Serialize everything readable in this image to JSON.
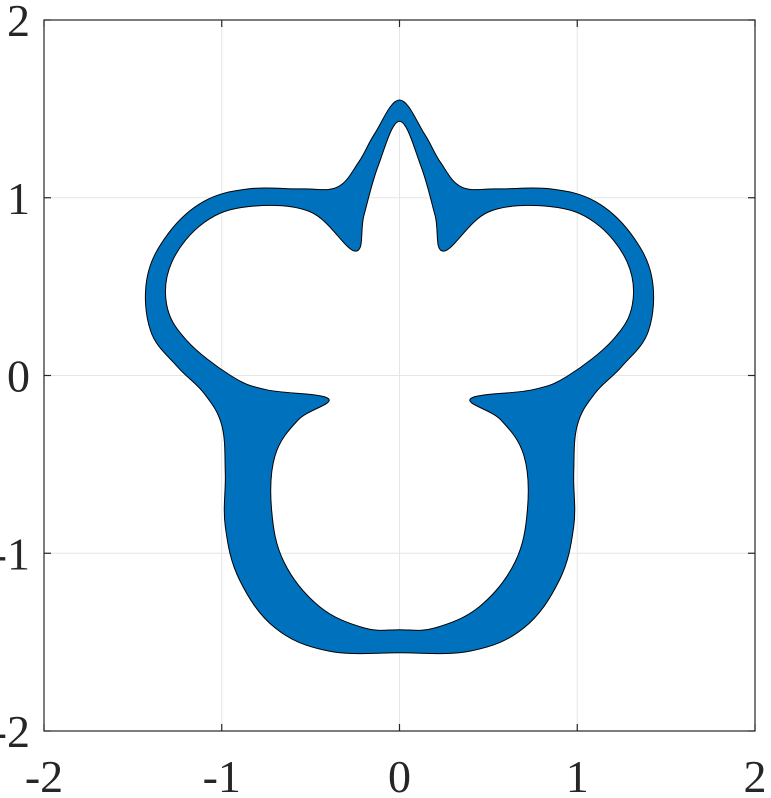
{
  "chart_data": {
    "type": "area",
    "title": "",
    "xlabel": "",
    "ylabel": "",
    "xlim": [
      -2,
      2
    ],
    "ylim": [
      -2,
      2
    ],
    "xticks": [
      "-2",
      "-1",
      "0",
      "1",
      "2"
    ],
    "yticks": [
      "-2",
      "-1",
      "0",
      "1",
      "2"
    ],
    "grid": true,
    "fill_color": "#0072BD",
    "edge_color": "#000000",
    "series": [
      {
        "outer_boundary": [
          [
            0.0,
            1.55
          ],
          [
            0.14,
            1.36
          ],
          [
            0.23,
            1.2
          ],
          [
            0.35,
            1.06
          ],
          [
            0.55,
            1.05
          ],
          [
            0.85,
            1.05
          ],
          [
            1.1,
            0.98
          ],
          [
            1.3,
            0.8
          ],
          [
            1.42,
            0.55
          ],
          [
            1.4,
            0.25
          ],
          [
            1.25,
            0.05
          ],
          [
            1.1,
            -0.1
          ],
          [
            1.0,
            -0.28
          ],
          [
            0.98,
            -0.55
          ],
          [
            0.98,
            -0.85
          ],
          [
            0.9,
            -1.15
          ],
          [
            0.7,
            -1.42
          ],
          [
            0.4,
            -1.55
          ],
          [
            0.0,
            -1.56
          ],
          [
            -0.4,
            -1.55
          ],
          [
            -0.7,
            -1.42
          ],
          [
            -0.9,
            -1.15
          ],
          [
            -0.98,
            -0.85
          ],
          [
            -0.98,
            -0.55
          ],
          [
            -1.0,
            -0.28
          ],
          [
            -1.1,
            -0.1
          ],
          [
            -1.25,
            0.05
          ],
          [
            -1.4,
            0.25
          ],
          [
            -1.42,
            0.55
          ],
          [
            -1.3,
            0.8
          ],
          [
            -1.1,
            0.98
          ],
          [
            -0.85,
            1.05
          ],
          [
            -0.55,
            1.05
          ],
          [
            -0.35,
            1.06
          ],
          [
            -0.23,
            1.2
          ],
          [
            -0.14,
            1.36
          ]
        ],
        "inner_boundary": [
          [
            0.0,
            1.43
          ],
          [
            0.12,
            1.18
          ],
          [
            0.2,
            0.9
          ],
          [
            0.25,
            0.7
          ],
          [
            0.5,
            0.92
          ],
          [
            0.85,
            0.95
          ],
          [
            1.1,
            0.86
          ],
          [
            1.28,
            0.64
          ],
          [
            1.31,
            0.4
          ],
          [
            1.2,
            0.2
          ],
          [
            0.95,
            0.0
          ],
          [
            0.75,
            -0.08
          ],
          [
            0.4,
            -0.13
          ],
          [
            0.57,
            -0.25
          ],
          [
            0.7,
            -0.45
          ],
          [
            0.72,
            -0.75
          ],
          [
            0.65,
            -1.05
          ],
          [
            0.45,
            -1.3
          ],
          [
            0.2,
            -1.42
          ],
          [
            0.0,
            -1.43
          ],
          [
            -0.2,
            -1.42
          ],
          [
            -0.45,
            -1.3
          ],
          [
            -0.65,
            -1.05
          ],
          [
            -0.72,
            -0.75
          ],
          [
            -0.7,
            -0.45
          ],
          [
            -0.57,
            -0.25
          ],
          [
            -0.4,
            -0.13
          ],
          [
            -0.75,
            -0.08
          ],
          [
            -0.95,
            0.0
          ],
          [
            -1.2,
            0.2
          ],
          [
            -1.31,
            0.4
          ],
          [
            -1.28,
            0.64
          ],
          [
            -1.1,
            0.86
          ],
          [
            -0.85,
            0.95
          ],
          [
            -0.5,
            0.92
          ],
          [
            -0.25,
            0.7
          ],
          [
            -0.2,
            0.9
          ],
          [
            -0.12,
            1.18
          ]
        ]
      }
    ]
  }
}
